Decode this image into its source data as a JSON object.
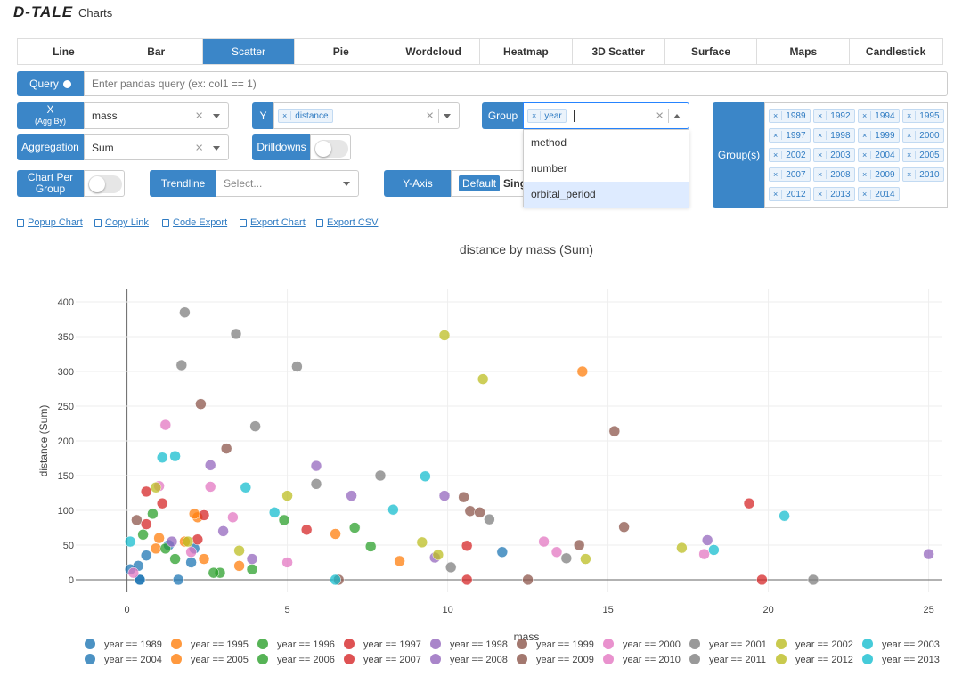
{
  "header": {
    "logo": "D-TALE",
    "title": "Charts"
  },
  "tabs": [
    "Line",
    "Bar",
    "Scatter",
    "Pie",
    "Wordcloud",
    "Heatmap",
    "3D Scatter",
    "Surface",
    "Maps",
    "Candlestick"
  ],
  "active_tab": 2,
  "icons": {
    "clear": "×"
  },
  "query": {
    "label": "Query",
    "placeholder": "Enter pandas query (ex: col1 == 1)"
  },
  "x": {
    "label": "X",
    "sublabel": "(Agg By)",
    "value": "mass"
  },
  "y": {
    "label": "Y",
    "tags": [
      "distance"
    ]
  },
  "group": {
    "label": "Group",
    "tags": [
      "year"
    ],
    "options": [
      "method",
      "number",
      "orbital_period"
    ],
    "highlighted": 2
  },
  "groups": {
    "label": "Group(s)",
    "tags": [
      "1989",
      "1992",
      "1994",
      "1995",
      "1997",
      "1998",
      "1999",
      "2000",
      "2002",
      "2003",
      "2004",
      "2005",
      "2007",
      "2008",
      "2009",
      "2010",
      "2012",
      "2013",
      "2014"
    ]
  },
  "aggregation": {
    "label": "Aggregation",
    "value": "Sum"
  },
  "drilldowns": {
    "label": "Drilldowns"
  },
  "chart_per_group": {
    "label": "Chart Per Group"
  },
  "trendline": {
    "label": "Trendline",
    "placeholder": "Select..."
  },
  "y_axis": {
    "label": "Y-Axis",
    "options": [
      "Default",
      "Single"
    ]
  },
  "links": [
    "Popup Chart",
    "Copy Link",
    "Code Export",
    "Export Chart",
    "Export CSV"
  ],
  "chart_data": {
    "type": "scatter",
    "title": "distance by mass (Sum)",
    "x_label": "mass",
    "y_label": "distance (Sum)",
    "xlim": [
      -1.6,
      25.4
    ],
    "ylim": [
      -18,
      418
    ],
    "xticks": [
      0,
      5,
      10,
      15,
      20,
      25
    ],
    "yticks": [
      0,
      50,
      100,
      150,
      200,
      250,
      300,
      350,
      400
    ],
    "grid": true,
    "series": [
      {
        "name": "year == 1989",
        "color": "#1f77b4",
        "x": [
          11.7,
          0.4,
          1.6,
          0.35,
          2.1
        ],
        "values": [
          40,
          0,
          0,
          20,
          45
        ]
      },
      {
        "name": "year == 1995",
        "color": "#ff7f0e",
        "x": [
          14.2,
          6.5,
          8.5,
          2.2,
          1.0
        ],
        "values": [
          300,
          66,
          27,
          90,
          60
        ]
      },
      {
        "name": "year == 1996",
        "color": "#2ca02c",
        "x": [
          7.6,
          2.9,
          4.9,
          0.8,
          1.5
        ],
        "values": [
          48,
          10,
          86,
          95,
          30
        ]
      },
      {
        "name": "year == 1997",
        "color": "#d62728",
        "x": [
          19.4,
          0.6,
          5.6,
          2.4,
          1.1
        ],
        "values": [
          110,
          127,
          72,
          93,
          110
        ]
      },
      {
        "name": "year == 1998",
        "color": "#9467bd",
        "x": [
          25.0,
          18.1,
          5.9,
          9.9,
          7.0
        ],
        "values": [
          37,
          57,
          164,
          121,
          121
        ]
      },
      {
        "name": "year == 1999",
        "color": "#8c564b",
        "x": [
          15.2,
          2.3,
          3.1,
          10.5,
          0.3
        ],
        "values": [
          214,
          253,
          189,
          119,
          86
        ]
      },
      {
        "name": "year == 2000",
        "color": "#e377c2",
        "x": [
          1.2,
          13.0,
          13.4,
          18.0,
          2.6
        ],
        "values": [
          223,
          55,
          40,
          37,
          134
        ]
      },
      {
        "name": "year == 2001",
        "color": "#7f7f7f",
        "x": [
          1.8,
          3.4,
          1.7,
          5.3,
          4.0
        ],
        "values": [
          385,
          354,
          309,
          307,
          221
        ]
      },
      {
        "name": "year == 2002",
        "color": "#bcbd22",
        "x": [
          9.9,
          11.1,
          17.3,
          5.0,
          9.2
        ],
        "values": [
          352,
          289,
          46,
          121,
          54
        ]
      },
      {
        "name": "year == 2003",
        "color": "#17becf",
        "x": [
          20.5,
          18.3,
          9.3,
          8.3,
          3.7
        ],
        "values": [
          92,
          43,
          149,
          101,
          133
        ]
      },
      {
        "name": "year == 2004",
        "color": "#1f77b4",
        "x": [
          0.4,
          0.1,
          1.3,
          2.0,
          0.6
        ],
        "values": [
          0,
          15,
          50,
          25,
          35
        ]
      },
      {
        "name": "year == 2005",
        "color": "#ff7f0e",
        "x": [
          2.1,
          3.5,
          1.8,
          0.9,
          2.4
        ],
        "values": [
          95,
          20,
          55,
          45,
          30
        ]
      },
      {
        "name": "year == 2006",
        "color": "#2ca02c",
        "x": [
          3.9,
          0.5,
          1.2,
          2.7,
          7.1
        ],
        "values": [
          15,
          65,
          45,
          10,
          75
        ]
      },
      {
        "name": "year == 2007",
        "color": "#d62728",
        "x": [
          19.8,
          10.6,
          10.6,
          2.2,
          0.6
        ],
        "values": [
          0,
          0,
          49,
          58,
          80
        ]
      },
      {
        "name": "year == 2008",
        "color": "#9467bd",
        "x": [
          2.6,
          3.0,
          1.4,
          9.6,
          3.9
        ],
        "values": [
          165,
          70,
          55,
          32,
          30
        ]
      },
      {
        "name": "year == 2009",
        "color": "#8c564b",
        "x": [
          15.5,
          10.7,
          11.0,
          14.1,
          12.5,
          6.6
        ],
        "values": [
          76,
          99,
          97,
          50,
          0,
          0
        ]
      },
      {
        "name": "year == 2010",
        "color": "#e377c2",
        "x": [
          1.0,
          2.0,
          3.3,
          5.0,
          0.2
        ],
        "values": [
          135,
          40,
          90,
          25,
          10
        ]
      },
      {
        "name": "year == 2011",
        "color": "#7f7f7f",
        "x": [
          21.4,
          13.7,
          10.1,
          11.3,
          5.9,
          7.9
        ],
        "values": [
          0,
          31,
          18,
          87,
          138,
          150
        ]
      },
      {
        "name": "year == 2012",
        "color": "#bcbd22",
        "x": [
          14.3,
          9.7,
          0.9,
          3.5,
          1.9
        ],
        "values": [
          30,
          36,
          133,
          42,
          55
        ]
      },
      {
        "name": "year == 2013",
        "color": "#17becf",
        "x": [
          1.1,
          0.1,
          1.5,
          6.5,
          4.6
        ],
        "values": [
          176,
          55,
          178,
          0,
          97
        ]
      }
    ]
  }
}
